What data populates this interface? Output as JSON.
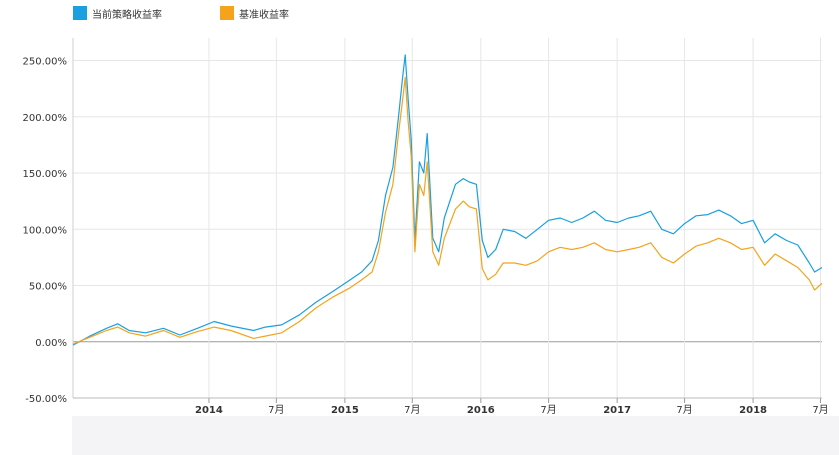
{
  "legend": [
    {
      "name": "当前策略收益率",
      "color": "#1a9fe0"
    },
    {
      "name": "基准收益率",
      "color": "#f4a31b"
    }
  ],
  "chart_data": {
    "type": "line",
    "ylim": [
      -50,
      270
    ],
    "xlim": [
      "2013-01-01",
      "2018-07-05"
    ],
    "yticks": [
      -50,
      0,
      50,
      100,
      150,
      200,
      250
    ],
    "ytick_labels": [
      "-50.00%",
      "0.00%",
      "50.00%",
      "100.00%",
      "150.00%",
      "200.00%",
      "250.00%"
    ],
    "xticks": [
      {
        "label": "2014",
        "date": "2014-01-01",
        "bold": true
      },
      {
        "label": "7月",
        "date": "2014-07-01",
        "bold": false
      },
      {
        "label": "2015",
        "date": "2015-01-01",
        "bold": true
      },
      {
        "label": "7月",
        "date": "2015-07-01",
        "bold": false
      },
      {
        "label": "2016",
        "date": "2016-01-01",
        "bold": true
      },
      {
        "label": "7月",
        "date": "2016-07-01",
        "bold": false
      },
      {
        "label": "2017",
        "date": "2017-01-01",
        "bold": true
      },
      {
        "label": "7月",
        "date": "2017-07-01",
        "bold": false
      },
      {
        "label": "2018",
        "date": "2018-01-01",
        "bold": true
      },
      {
        "label": "7月",
        "date": "2018-07-01",
        "bold": false
      }
    ],
    "grid": true,
    "legend_position": "top-left",
    "series": [
      {
        "name": "当前策略收益率",
        "color": "#1a9fe0",
        "points": [
          [
            "2013-01-01",
            -3
          ],
          [
            "2013-02-15",
            5
          ],
          [
            "2013-04-01",
            12
          ],
          [
            "2013-05-01",
            16
          ],
          [
            "2013-06-01",
            10
          ],
          [
            "2013-07-15",
            8
          ],
          [
            "2013-09-01",
            12
          ],
          [
            "2013-10-15",
            6
          ],
          [
            "2013-12-01",
            12
          ],
          [
            "2014-01-15",
            18
          ],
          [
            "2014-03-01",
            14
          ],
          [
            "2014-05-01",
            10
          ],
          [
            "2014-06-01",
            13
          ],
          [
            "2014-07-15",
            15
          ],
          [
            "2014-09-01",
            24
          ],
          [
            "2014-10-15",
            35
          ],
          [
            "2014-12-01",
            45
          ],
          [
            "2015-01-15",
            55
          ],
          [
            "2015-02-15",
            62
          ],
          [
            "2015-03-15",
            72
          ],
          [
            "2015-04-01",
            90
          ],
          [
            "2015-04-20",
            130
          ],
          [
            "2015-05-10",
            155
          ],
          [
            "2015-05-25",
            200
          ],
          [
            "2015-06-05",
            235
          ],
          [
            "2015-06-12",
            255
          ],
          [
            "2015-06-20",
            215
          ],
          [
            "2015-06-28",
            180
          ],
          [
            "2015-07-08",
            90
          ],
          [
            "2015-07-20",
            160
          ],
          [
            "2015-08-01",
            150
          ],
          [
            "2015-08-10",
            185
          ],
          [
            "2015-08-25",
            92
          ],
          [
            "2015-09-10",
            80
          ],
          [
            "2015-09-25",
            110
          ],
          [
            "2015-10-10",
            125
          ],
          [
            "2015-10-25",
            140
          ],
          [
            "2015-11-15",
            145
          ],
          [
            "2015-12-01",
            142
          ],
          [
            "2015-12-20",
            140
          ],
          [
            "2016-01-05",
            90
          ],
          [
            "2016-01-20",
            75
          ],
          [
            "2016-02-10",
            82
          ],
          [
            "2016-03-01",
            100
          ],
          [
            "2016-04-01",
            98
          ],
          [
            "2016-05-01",
            92
          ],
          [
            "2016-06-01",
            100
          ],
          [
            "2016-07-01",
            108
          ],
          [
            "2016-08-01",
            110
          ],
          [
            "2016-09-01",
            106
          ],
          [
            "2016-10-01",
            110
          ],
          [
            "2016-11-01",
            116
          ],
          [
            "2016-12-01",
            108
          ],
          [
            "2017-01-01",
            106
          ],
          [
            "2017-02-01",
            110
          ],
          [
            "2017-03-01",
            112
          ],
          [
            "2017-04-01",
            116
          ],
          [
            "2017-05-01",
            100
          ],
          [
            "2017-06-01",
            96
          ],
          [
            "2017-07-01",
            105
          ],
          [
            "2017-08-01",
            112
          ],
          [
            "2017-09-01",
            113
          ],
          [
            "2017-10-01",
            117
          ],
          [
            "2017-11-01",
            112
          ],
          [
            "2017-12-01",
            105
          ],
          [
            "2018-01-01",
            108
          ],
          [
            "2018-02-01",
            88
          ],
          [
            "2018-03-01",
            96
          ],
          [
            "2018-04-01",
            90
          ],
          [
            "2018-05-01",
            86
          ],
          [
            "2018-06-01",
            70
          ],
          [
            "2018-06-15",
            62
          ],
          [
            "2018-07-05",
            66
          ]
        ]
      },
      {
        "name": "基准收益率",
        "color": "#f4a31b",
        "points": [
          [
            "2013-01-01",
            -2
          ],
          [
            "2013-02-15",
            4
          ],
          [
            "2013-04-01",
            10
          ],
          [
            "2013-05-01",
            13
          ],
          [
            "2013-06-01",
            8
          ],
          [
            "2013-07-15",
            5
          ],
          [
            "2013-09-01",
            10
          ],
          [
            "2013-10-15",
            4
          ],
          [
            "2013-12-01",
            9
          ],
          [
            "2014-01-15",
            13
          ],
          [
            "2014-03-01",
            10
          ],
          [
            "2014-05-01",
            3
          ],
          [
            "2014-06-01",
            5
          ],
          [
            "2014-07-15",
            8
          ],
          [
            "2014-09-01",
            18
          ],
          [
            "2014-10-15",
            30
          ],
          [
            "2014-12-01",
            40
          ],
          [
            "2015-01-15",
            48
          ],
          [
            "2015-02-15",
            55
          ],
          [
            "2015-03-15",
            62
          ],
          [
            "2015-04-01",
            80
          ],
          [
            "2015-04-20",
            115
          ],
          [
            "2015-05-10",
            140
          ],
          [
            "2015-05-25",
            185
          ],
          [
            "2015-06-05",
            215
          ],
          [
            "2015-06-12",
            235
          ],
          [
            "2015-06-20",
            195
          ],
          [
            "2015-06-28",
            165
          ],
          [
            "2015-07-08",
            80
          ],
          [
            "2015-07-20",
            140
          ],
          [
            "2015-08-01",
            130
          ],
          [
            "2015-08-10",
            160
          ],
          [
            "2015-08-25",
            80
          ],
          [
            "2015-09-10",
            68
          ],
          [
            "2015-09-25",
            92
          ],
          [
            "2015-10-10",
            105
          ],
          [
            "2015-10-25",
            118
          ],
          [
            "2015-11-15",
            125
          ],
          [
            "2015-12-01",
            120
          ],
          [
            "2015-12-20",
            118
          ],
          [
            "2016-01-05",
            65
          ],
          [
            "2016-01-20",
            55
          ],
          [
            "2016-02-10",
            60
          ],
          [
            "2016-03-01",
            70
          ],
          [
            "2016-04-01",
            70
          ],
          [
            "2016-05-01",
            68
          ],
          [
            "2016-06-01",
            72
          ],
          [
            "2016-07-01",
            80
          ],
          [
            "2016-08-01",
            84
          ],
          [
            "2016-09-01",
            82
          ],
          [
            "2016-10-01",
            84
          ],
          [
            "2016-11-01",
            88
          ],
          [
            "2016-12-01",
            82
          ],
          [
            "2017-01-01",
            80
          ],
          [
            "2017-02-01",
            82
          ],
          [
            "2017-03-01",
            84
          ],
          [
            "2017-04-01",
            88
          ],
          [
            "2017-05-01",
            75
          ],
          [
            "2017-06-01",
            70
          ],
          [
            "2017-07-01",
            78
          ],
          [
            "2017-08-01",
            85
          ],
          [
            "2017-09-01",
            88
          ],
          [
            "2017-10-01",
            92
          ],
          [
            "2017-11-01",
            88
          ],
          [
            "2017-12-01",
            82
          ],
          [
            "2018-01-01",
            84
          ],
          [
            "2018-02-01",
            68
          ],
          [
            "2018-03-01",
            78
          ],
          [
            "2018-04-01",
            72
          ],
          [
            "2018-05-01",
            66
          ],
          [
            "2018-06-01",
            55
          ],
          [
            "2018-06-15",
            46
          ],
          [
            "2018-07-05",
            52
          ]
        ]
      }
    ]
  }
}
